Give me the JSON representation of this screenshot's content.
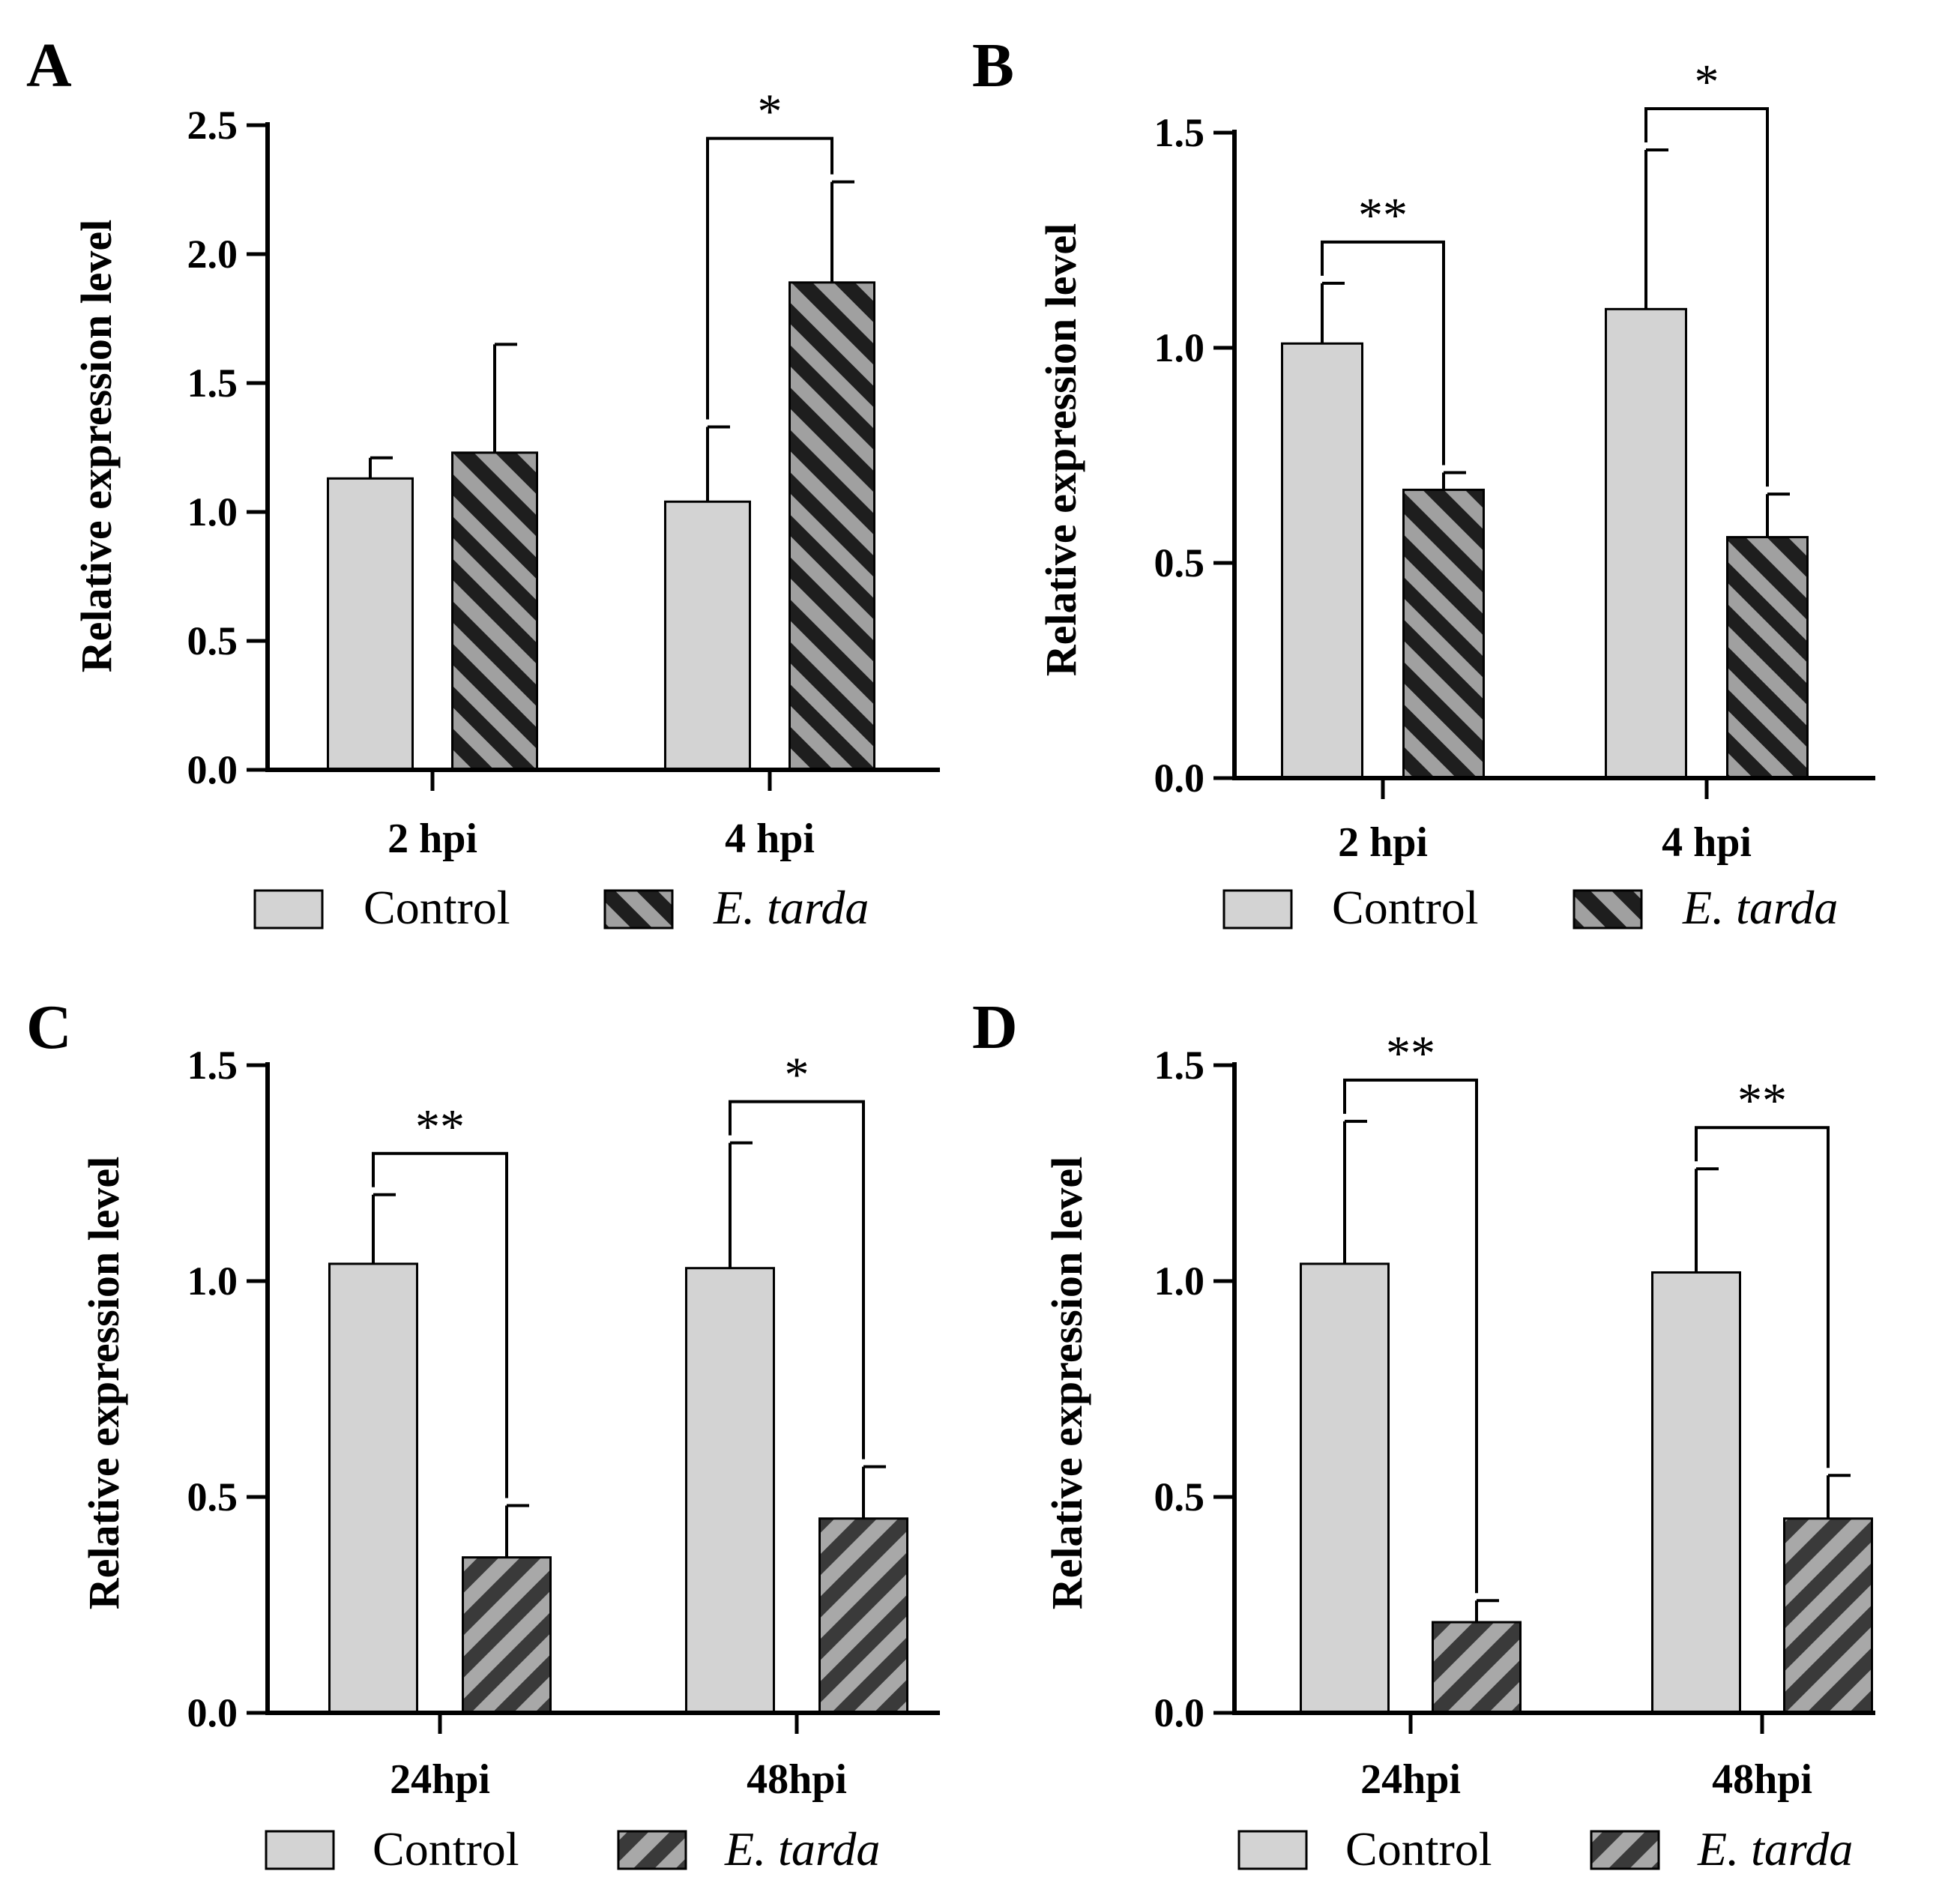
{
  "colors": {
    "control_fill": "#d3d3d3",
    "stripe_dark": "#1e1e1e",
    "stripe_light": "#a0a0a0",
    "stroke": "#000000"
  },
  "chart_data": [
    {
      "panel": "A",
      "type": "bar",
      "categories": [
        "2 hpi",
        "4 hpi"
      ],
      "ylabel": "Relative expression level",
      "ylim": [
        0,
        2.5
      ],
      "yticks": [
        "0.0",
        "0.5",
        "1.0",
        "1.5",
        "2.0",
        "2.5"
      ],
      "series": [
        {
          "name": "Control",
          "values": [
            1.13,
            1.04
          ],
          "errors": [
            0.08,
            0.29
          ]
        },
        {
          "name": "E. tarda",
          "values": [
            1.23,
            1.89
          ],
          "errors": [
            0.42,
            0.39
          ]
        }
      ],
      "significance": [
        {
          "category": 1,
          "label": "*"
        }
      ],
      "legend": [
        "Control",
        "E. tarda"
      ]
    },
    {
      "panel": "B",
      "type": "bar",
      "categories": [
        "2 hpi",
        "4 hpi"
      ],
      "ylabel": "Relative expression level",
      "ylim": [
        0,
        1.5
      ],
      "yticks": [
        "0.0",
        "0.5",
        "1.0",
        "1.5"
      ],
      "series": [
        {
          "name": "Control",
          "values": [
            1.01,
            1.09
          ],
          "errors": [
            0.14,
            0.37
          ]
        },
        {
          "name": "E. tarda",
          "values": [
            0.67,
            0.56
          ],
          "errors": [
            0.04,
            0.1
          ]
        }
      ],
      "significance": [
        {
          "category": 0,
          "label": "**"
        },
        {
          "category": 1,
          "label": "*"
        }
      ],
      "legend": [
        "Control",
        "E. tarda"
      ]
    },
    {
      "panel": "C",
      "type": "bar",
      "categories": [
        "24hpi",
        "48hpi"
      ],
      "ylabel": "Relative expression level",
      "ylim": [
        0,
        1.5
      ],
      "yticks": [
        "0.0",
        "0.5",
        "1.0",
        "1.5"
      ],
      "series": [
        {
          "name": "Control",
          "values": [
            1.04,
            1.03
          ],
          "errors": [
            0.16,
            0.29
          ]
        },
        {
          "name": "E. tarda",
          "values": [
            0.36,
            0.45
          ],
          "errors": [
            0.12,
            0.12
          ]
        }
      ],
      "significance": [
        {
          "category": 0,
          "label": "**"
        },
        {
          "category": 1,
          "label": "*"
        }
      ],
      "legend": [
        "Control",
        "E. tarda"
      ]
    },
    {
      "panel": "D",
      "type": "bar",
      "categories": [
        "24hpi",
        "48hpi"
      ],
      "ylabel": "Relative expression level",
      "ylim": [
        0,
        1.5
      ],
      "yticks": [
        "0.0",
        "0.5",
        "1.0",
        "1.5"
      ],
      "series": [
        {
          "name": "Control",
          "values": [
            1.04,
            1.02
          ],
          "errors": [
            0.33,
            0.24
          ]
        },
        {
          "name": "E. tarda",
          "values": [
            0.21,
            0.45
          ],
          "errors": [
            0.05,
            0.1
          ]
        }
      ],
      "significance": [
        {
          "category": 0,
          "label": "**"
        },
        {
          "category": 1,
          "label": "**"
        }
      ],
      "legend": [
        "Control",
        "E. tarda"
      ]
    }
  ]
}
